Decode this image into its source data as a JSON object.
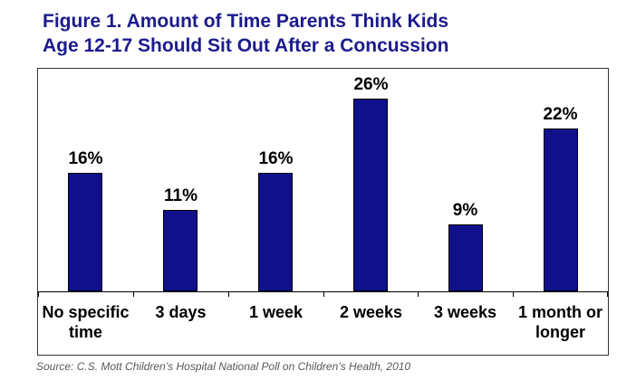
{
  "title": {
    "line1": "Figure 1. Amount of Time Parents Think Kids",
    "line2": "Age 12-17 Should Sit Out After a Concussion"
  },
  "chart_data": {
    "type": "bar",
    "title": "Figure 1. Amount of Time Parents Think Kids Age 12-17 Should Sit Out After a Concussion",
    "categories": [
      "No specific time",
      "3 days",
      "1 week",
      "2 weeks",
      "3 weeks",
      "1 month or longer"
    ],
    "category_lines": [
      [
        "No specific",
        "time"
      ],
      [
        "3 days"
      ],
      [
        "1 week"
      ],
      [
        "2 weeks"
      ],
      [
        "3 weeks"
      ],
      [
        "1 month or",
        "longer"
      ]
    ],
    "values": [
      16,
      11,
      16,
      26,
      9,
      22
    ],
    "value_labels": [
      "16%",
      "11%",
      "16%",
      "26%",
      "9%",
      "22%"
    ],
    "xlabel": "",
    "ylabel": "",
    "ylim": [
      0,
      30
    ],
    "grid": false,
    "legend": false,
    "bar_color": "#10108c",
    "bar_border_color": "#000000"
  },
  "source": "Source: C.S. Mott Children’s Hospital National Poll on Children’s Health, 2010",
  "colors": {
    "title_text": "#1b1b8e",
    "label_text": "#000000",
    "source_text": "#595959",
    "frame_border": "#333333",
    "axis": "#000000"
  }
}
